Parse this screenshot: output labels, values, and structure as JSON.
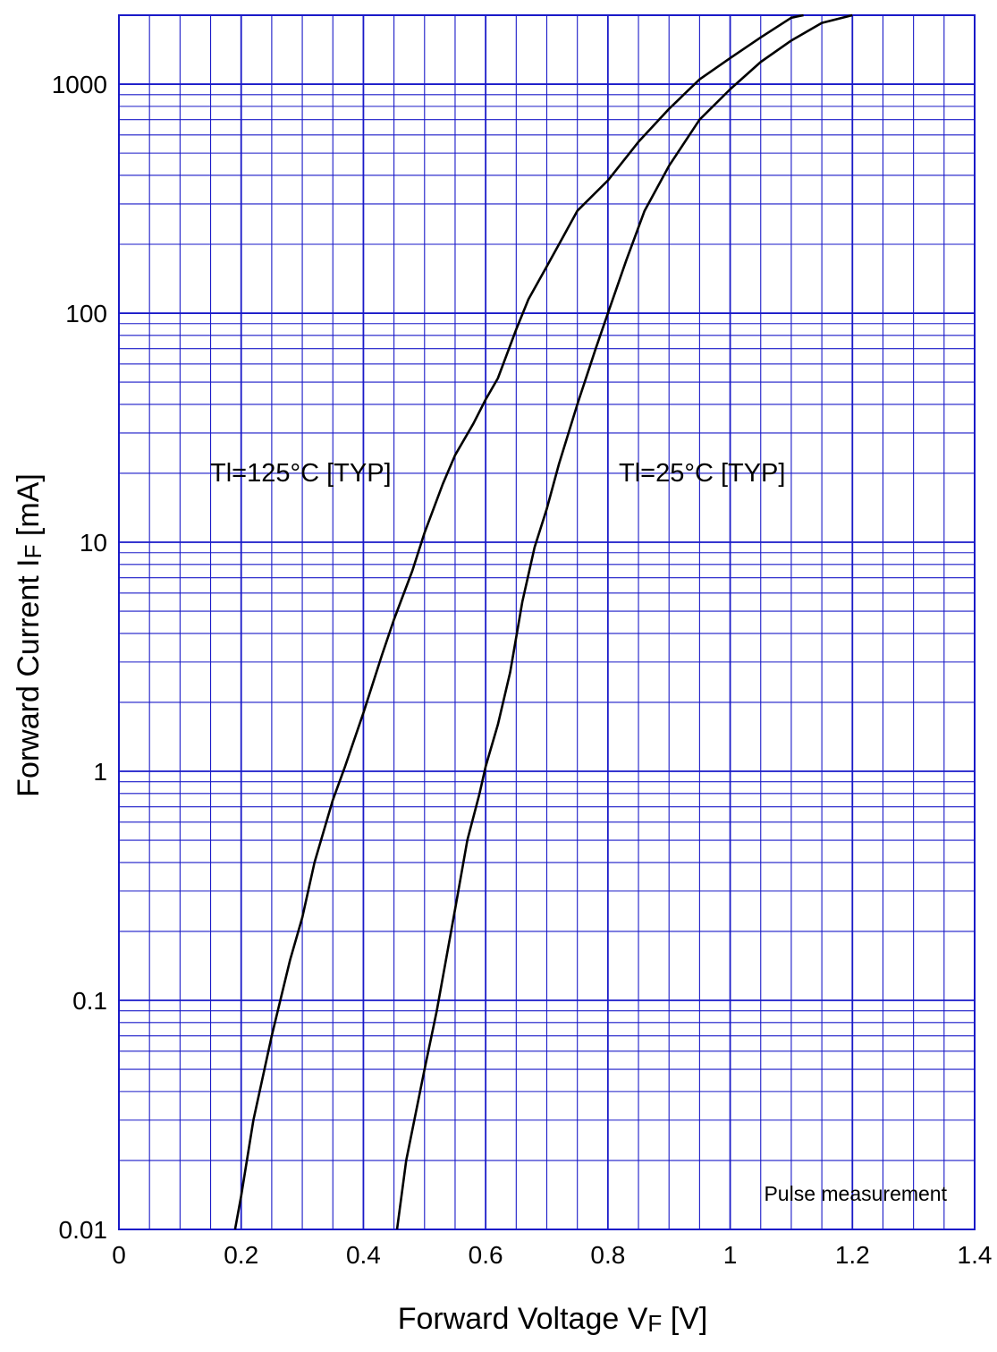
{
  "chart_data": {
    "type": "line",
    "title": "",
    "xlabel": {
      "main": "Forward Voltage  V",
      "sub": "F",
      "unit": "  [V]"
    },
    "ylabel": {
      "main": "Forward Current  I",
      "sub": "F",
      "unit": "  [mA]"
    },
    "xlim": [
      0,
      1.4
    ],
    "ylim": [
      0.01,
      2000
    ],
    "yscale": "log",
    "grid": true,
    "x_ticks": [
      0,
      0.2,
      0.4,
      0.6,
      0.8,
      1,
      1.2,
      1.4
    ],
    "x_tick_labels": [
      "0",
      "0.2",
      "0.4",
      "0.6",
      "0.8",
      "1",
      "1.2",
      "1.4"
    ],
    "y_ticks": [
      0.01,
      0.1,
      1,
      10,
      100,
      1000
    ],
    "y_tick_labels": [
      "0.01",
      "0.1",
      "1",
      "10",
      "100",
      "1000"
    ],
    "annotations": [
      "Tl=125°C [TYP]",
      "Tl=25°C [TYP]",
      "Pulse  measurement"
    ],
    "colors": {
      "grid": "#1a1ac8",
      "curve": "#000000",
      "background": "#ffffff"
    },
    "series": [
      {
        "x": [
          0.19,
          0.2,
          0.22,
          0.25,
          0.28,
          0.3,
          0.32,
          0.35,
          0.37,
          0.4,
          0.43,
          0.45,
          0.48,
          0.5,
          0.53,
          0.55,
          0.58,
          0.6,
          0.62,
          0.65,
          0.67,
          0.7,
          0.72,
          0.75,
          0.8,
          0.85,
          0.9,
          0.95,
          1.0,
          1.05,
          1.1,
          1.12
        ],
        "y": [
          0.01,
          0.014,
          0.03,
          0.07,
          0.15,
          0.23,
          0.4,
          0.75,
          1.05,
          1.8,
          3.2,
          4.6,
          7.5,
          11,
          18,
          24,
          33,
          42,
          52,
          85,
          115,
          160,
          200,
          280,
          380,
          560,
          780,
          1050,
          1300,
          1600,
          1950,
          2000
        ]
      },
      {
        "x": [
          0.455,
          0.47,
          0.5,
          0.52,
          0.55,
          0.57,
          0.59,
          0.6,
          0.62,
          0.64,
          0.66,
          0.68,
          0.7,
          0.72,
          0.75,
          0.78,
          0.8,
          0.83,
          0.86,
          0.9,
          0.95,
          1.0,
          1.05,
          1.1,
          1.15,
          1.2
        ],
        "y": [
          0.01,
          0.02,
          0.05,
          0.09,
          0.25,
          0.5,
          0.8,
          1.05,
          1.6,
          2.7,
          5.5,
          9.5,
          14,
          22,
          40,
          70,
          100,
          170,
          280,
          440,
          700,
          950,
          1250,
          1550,
          1850,
          2000
        ]
      }
    ]
  }
}
